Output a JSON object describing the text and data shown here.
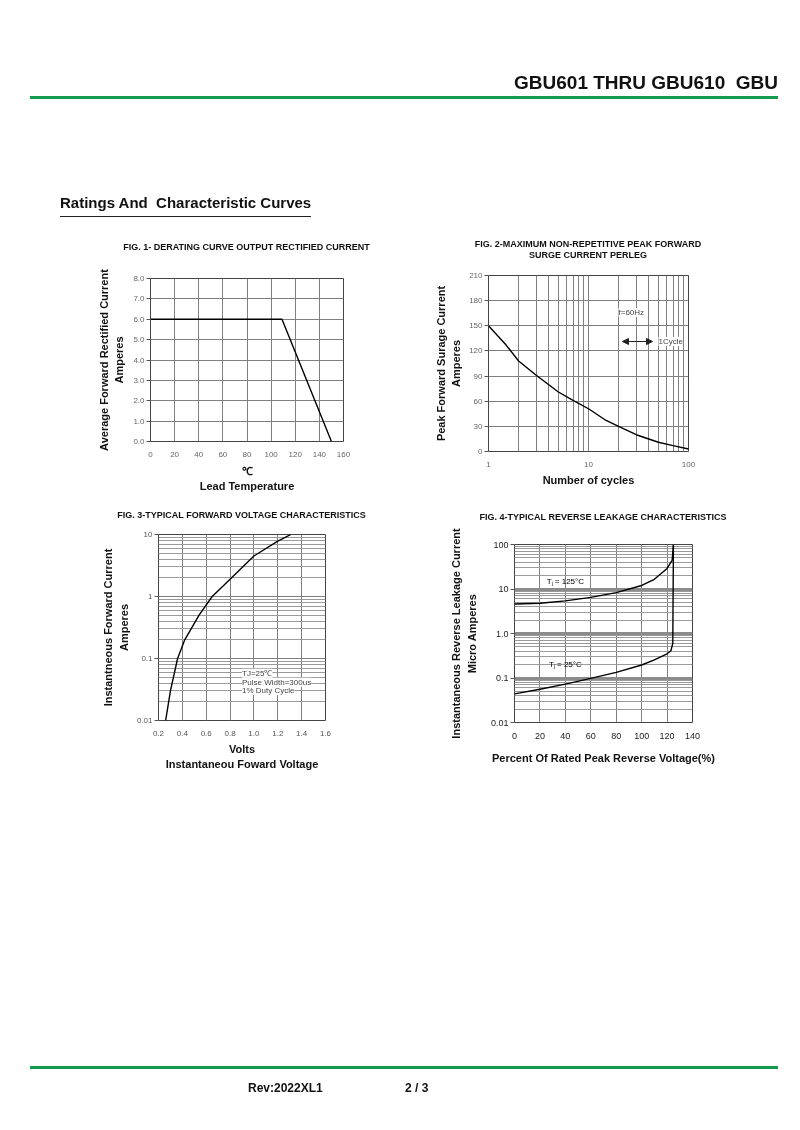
{
  "chart_data": [
    {
      "type": "other",
      "title": "GBU601 THRU GBU610  GBU",
      "subtitle": "Ratings And  Characteristic Curves"
    },
    {
      "type": "line",
      "title": "FIG. 1- DERATING CURVE OUTPUT RECTIFIED CURRENT",
      "xlabel": "℃\nLead Temperature",
      "ylabel": "Average Forward Rectified Current\nAmperes",
      "x": [
        0,
        109,
        150
      ],
      "values": [
        6,
        6,
        0
      ],
      "color": "#000000",
      "xlim": [
        0,
        160
      ],
      "ylim": [
        0,
        8
      ],
      "xticks": [
        0,
        20,
        40,
        60,
        80,
        100,
        120,
        140,
        160
      ],
      "yticks": [
        {
          "value": 0,
          "label": "0.0"
        },
        {
          "value": 1,
          "label": "1.0"
        },
        {
          "value": 2,
          "label": "2.0"
        },
        {
          "value": 3,
          "label": "3.0"
        },
        {
          "value": 4,
          "label": "4.0"
        },
        {
          "value": 5,
          "label": "5.0"
        },
        {
          "value": 6,
          "label": "6.0"
        },
        {
          "value": 7,
          "label": "7.0"
        },
        {
          "value": 8,
          "label": "8.0"
        }
      ],
      "grid": true
    },
    {
      "type": "line",
      "title": "FIG. 2-MAXIMUM NON-REPETITIVE PEAK FORWARD\nSURGE CURRENT PERLEG",
      "xlabel": "Number of cycles",
      "ylabel": "Peak Forward Surage Current\nAmperes",
      "series": [
        {
          "color": "#000000",
          "x": [
            1,
            1.5,
            2,
            3,
            5,
            7,
            10,
            15,
            20,
            30,
            50,
            70,
            100
          ],
          "values": [
            150,
            127,
            108,
            91,
            71,
            61,
            51,
            37,
            30,
            20,
            11,
            7,
            3
          ]
        }
      ],
      "xlim": [
        1,
        100
      ],
      "ylim": [
        0,
        210
      ],
      "xticks": [
        1,
        10,
        100
      ],
      "yticks": [
        0,
        30,
        60,
        90,
        120,
        150,
        180,
        210
      ],
      "log": "x",
      "grid": true,
      "annotations": [
        "f=60Hz",
        "1Cycle"
      ]
    },
    {
      "type": "line",
      "title": "FIG. 3-TYPICAL FORWARD VOLTAGE CHARACTERISTICS",
      "xlabel": "Volts\nInstantaneou Foward Voltage",
      "ylabel": "Instantneous Forward Current\nAmperes",
      "series": [
        {
          "color": "#000000",
          "x": [
            0.26,
            0.3,
            0.36,
            0.42,
            0.54,
            0.65,
            0.8,
            1.0,
            1.2,
            1.31
          ],
          "values": [
            0.01,
            0.03,
            0.1,
            0.2,
            0.5,
            1,
            1.9,
            4.5,
            7.8,
            10
          ]
        }
      ],
      "xlim": [
        0.2,
        1.6
      ],
      "ylim": [
        0.01,
        10
      ],
      "xticks": [
        0.2,
        0.4,
        0.6,
        0.8,
        {
          "value": 1,
          "label": "1.0"
        },
        1.2,
        1.4,
        1.6
      ],
      "yticks": [
        0.01,
        0.1,
        1,
        10
      ],
      "log": "y",
      "grid": true,
      "annotations": [
        "TJ=25℃",
        "Pulse Width=300us",
        "1% Duty Cycle"
      ]
    },
    {
      "type": "line",
      "title": "FIG. 4-TYPICAL REVERSE LEAKAGE CHARACTERISTICS",
      "xlabel": "Percent Of Rated Peak Reverse Voltage(%)",
      "ylabel": "Instantaneous Reverse Leakage Current\nMicro Amperes",
      "series": [
        {
          "name": "Tⱼ = 125°C",
          "color": "#000000",
          "x": [
            0,
            20,
            40,
            60,
            80,
            100,
            110,
            120,
            124,
            125
          ],
          "values": [
            4.6,
            4.8,
            5.4,
            6.5,
            8.3,
            12,
            16.5,
            29,
            44,
            100
          ]
        },
        {
          "name": "Tⱼ = 25°C",
          "color": "#000000",
          "x": [
            0,
            20,
            40,
            60,
            80,
            100,
            110,
            120,
            123,
            124.5,
            125
          ],
          "values": [
            0.044,
            0.056,
            0.073,
            0.098,
            0.134,
            0.196,
            0.255,
            0.35,
            0.41,
            0.6,
            100
          ]
        }
      ],
      "xlim": [
        0,
        140
      ],
      "ylim": [
        0.01,
        100
      ],
      "xticks": [
        0,
        20,
        40,
        60,
        80,
        100,
        120,
        140
      ],
      "yticks": [
        0.01,
        0.1,
        {
          "value": 1,
          "label": "1.0"
        },
        10,
        100
      ],
      "log": "y",
      "grid": true
    },
    {
      "type": "other",
      "annotations": [
        "Rev:2022XL1",
        "2 / 3"
      ]
    }
  ]
}
